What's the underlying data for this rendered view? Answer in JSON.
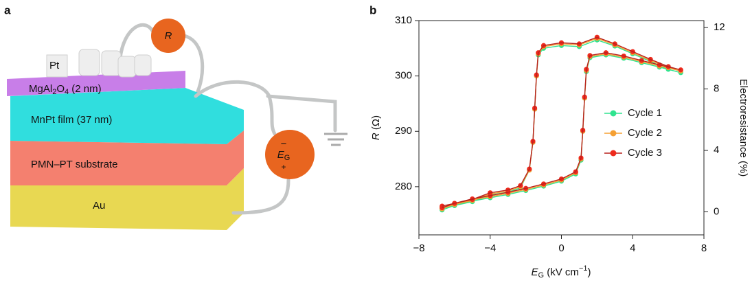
{
  "panel_a": {
    "label": "a",
    "pt": "Pt",
    "mgalo_parts": [
      "MgAl",
      "2",
      "O",
      "4",
      " (2 nm)"
    ],
    "mnpt": "MnPt film (37 nm)",
    "pmnpt": "PMN–PT substrate",
    "au": "Au",
    "r_symbol": "R",
    "eg_parts": [
      "E",
      "G"
    ],
    "eg_sign_top": "−",
    "eg_sign_bottom": "+"
  },
  "chart_data": {
    "type": "line",
    "panel_label": "b",
    "xlabel_parts": [
      "E",
      "G",
      " (kV cm",
      "−1",
      ")"
    ],
    "ylabel_parts": [
      "R",
      " (Ω)"
    ],
    "y2label": "Electroresistance (%)",
    "xlim": [
      -8,
      8
    ],
    "xticks": [
      {
        "value": -8,
        "label": "−8"
      },
      {
        "value": -4,
        "label": "−4"
      },
      0,
      4,
      8
    ],
    "ylim": [
      271.3,
      310
    ],
    "yticks": [
      280,
      290,
      300,
      310
    ],
    "y2lim": [
      -1.5,
      12.45
    ],
    "y2ticks": [
      0,
      4,
      8,
      12
    ],
    "legend": "right",
    "series": [
      {
        "name": "Cycle 1",
        "color": "#2fe48f",
        "marker": "#2fe48f",
        "x": [
          -6.7,
          -6,
          -5,
          -4,
          -3,
          -2,
          -1,
          0,
          0.8,
          1.1,
          1.2,
          1.3,
          1.4,
          1.6,
          2.5,
          3.5,
          4.5,
          5.5,
          6.7,
          6,
          5,
          4,
          3,
          2,
          1,
          0,
          -1,
          -1.3,
          -1.4,
          -1.5,
          -1.6,
          -1.8,
          -2.3,
          -3,
          -4,
          -5,
          -6,
          -6.7
        ],
        "values": [
          275.8,
          276.6,
          277.4,
          278,
          278.6,
          279.3,
          280.1,
          281,
          282.3,
          284.8,
          290,
          296,
          300.8,
          303.3,
          303.8,
          303.2,
          302.4,
          301.6,
          300.6,
          301.2,
          302.6,
          304,
          305.4,
          306.5,
          305.3,
          305.5,
          305,
          303.8,
          300,
          294,
          288,
          283,
          279.8,
          279,
          278.5,
          277.3,
          276.6,
          276.1
        ]
      },
      {
        "name": "Cycle 2",
        "color": "#f5a033",
        "marker": "#f5a033",
        "x": [
          -6.7,
          -6,
          -5,
          -4,
          -3,
          -2,
          -1,
          0,
          0.8,
          1.1,
          1.2,
          1.3,
          1.4,
          1.6,
          2.5,
          3.5,
          4.5,
          5.5,
          6.7,
          6,
          5,
          4,
          3,
          2,
          1,
          0,
          -1,
          -1.3,
          -1.4,
          -1.5,
          -1.6,
          -1.8,
          -2.3,
          -3,
          -4,
          -5,
          -6,
          -6.7
        ],
        "values": [
          276,
          276.8,
          277.6,
          278.2,
          278.8,
          279.5,
          280.3,
          281.2,
          282.5,
          285,
          290,
          296,
          301,
          303.5,
          304,
          303.4,
          302.6,
          301.8,
          300.9,
          301.5,
          302.8,
          304.2,
          305.6,
          306.8,
          305.6,
          305.8,
          305.3,
          304,
          300,
          294,
          288,
          283,
          280,
          279.2,
          278.7,
          277.5,
          276.8,
          276.3
        ]
      },
      {
        "name": "Cycle 3",
        "color": "#b8211c",
        "marker": "#ee2a1d",
        "x": [
          -6.7,
          -6,
          -5,
          -4,
          -3,
          -2,
          -1,
          0,
          0.8,
          1.1,
          1.2,
          1.3,
          1.4,
          1.6,
          2.5,
          3.5,
          4.5,
          5.5,
          6.7,
          6,
          5,
          4,
          3,
          2,
          1,
          0,
          -1,
          -1.3,
          -1.4,
          -1.5,
          -1.6,
          -1.8,
          -2.3,
          -3,
          -4,
          -5,
          -6,
          -6.7
        ],
        "values": [
          276.2,
          277,
          277.8,
          278.4,
          279,
          279.7,
          280.5,
          281.4,
          282.7,
          285.2,
          290.2,
          296.2,
          301.2,
          303.7,
          304.2,
          303.6,
          302.8,
          302,
          301.1,
          301.7,
          303,
          304.4,
          305.8,
          307,
          305.8,
          306,
          305.5,
          304.2,
          300.2,
          294.2,
          288.2,
          283.2,
          280.2,
          279.4,
          278.9,
          277.7,
          277,
          276.5
        ]
      }
    ]
  }
}
